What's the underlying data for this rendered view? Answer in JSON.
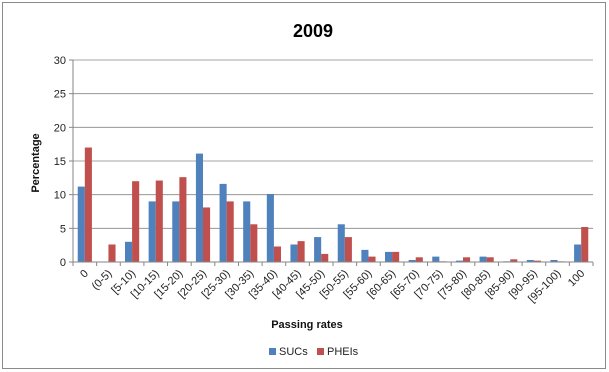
{
  "chart_data": {
    "type": "bar",
    "title": "2009",
    "xlabel": "Passing rates",
    "ylabel": "Percentage",
    "ylim": [
      0,
      30
    ],
    "yticks": [
      0,
      5,
      10,
      15,
      20,
      25,
      30
    ],
    "grid": true,
    "legend_position": "bottom",
    "categories": [
      "0",
      "(0-5)",
      "[5-10)",
      "[10-15)",
      "[15-20)",
      "[20-25)",
      "[25-30)",
      "[30-35)",
      "[35-40)",
      "[40-45)",
      "[45-50)",
      "[50-55)",
      "[55-60)",
      "[60-65)",
      "[65-70)",
      "[70-75)",
      "[75-80)",
      "[80-85)",
      "[85-90)",
      "[90-95)",
      "[95-100)",
      "100"
    ],
    "series": [
      {
        "name": "SUCs",
        "color": "#4F81BD",
        "values": [
          11.2,
          0,
          3,
          9,
          9,
          16.1,
          11.6,
          9,
          10.1,
          2.6,
          3.7,
          5.6,
          1.8,
          1.5,
          0.3,
          0.8,
          0.2,
          0.8,
          0.1,
          0.3,
          0.3,
          2.6
        ]
      },
      {
        "name": "PHEIs",
        "color": "#C0504D",
        "values": [
          17,
          2.6,
          12,
          12.1,
          12.6,
          8.1,
          9,
          5.6,
          2.3,
          3.1,
          1.2,
          3.7,
          0.8,
          1.5,
          0.7,
          0.1,
          0.7,
          0.7,
          0.4,
          0.2,
          0.1,
          5.2
        ]
      }
    ]
  }
}
